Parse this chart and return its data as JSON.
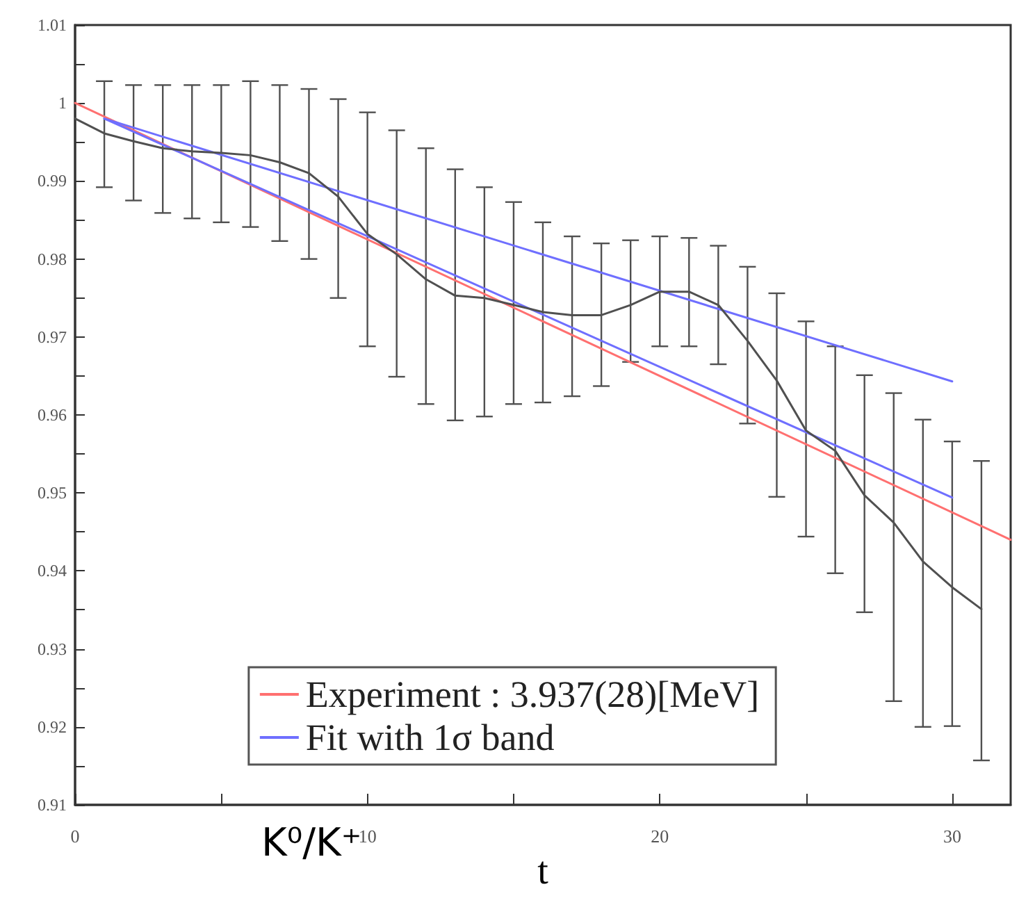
{
  "chart_data": {
    "type": "line",
    "xlabel": "t",
    "annotations": [
      "K⁰/K⁺"
    ],
    "xlim": [
      0,
      32
    ],
    "xticks": [
      0,
      {
        "value": 5,
        "label": null
      },
      10,
      {
        "value": 15,
        "label": null
      },
      20,
      {
        "value": 25,
        "label": null
      },
      30
    ],
    "ylim": [
      0.91,
      1.01
    ],
    "yticks": [
      0.91,
      {
        "value": 0.915,
        "label": null
      },
      0.92,
      {
        "value": 0.925,
        "label": null
      },
      0.93,
      {
        "value": 0.935,
        "label": null
      },
      0.94,
      {
        "value": 0.945,
        "label": null
      },
      0.95,
      {
        "value": 0.955,
        "label": null
      },
      0.96,
      {
        "value": 0.965,
        "label": null
      },
      0.97,
      {
        "value": 0.975,
        "label": null
      },
      0.98,
      {
        "value": 0.985,
        "label": null
      },
      0.99,
      {
        "value": 0.995,
        "label": null
      },
      1,
      {
        "value": 1.005,
        "label": null
      },
      1.01
    ],
    "legend": "bottom",
    "marker": "none",
    "line_style": "solid",
    "series": [
      {
        "color": "#ff7070",
        "name": "Experiment : 3.937(28)[MeV]",
        "x": [
          0,
          32
        ],
        "values": [
          1,
          0.944
        ]
      },
      {
        "color": "#6f6fff",
        "name": "Fit with 1σ band",
        "x": [
          1,
          30
        ],
        "values": [
          0.998,
          0.9643
        ]
      },
      {
        "color": "#6f6fff",
        "x": [
          1,
          30
        ],
        "values": [
          0.998,
          0.9494
        ]
      },
      {
        "color": "#505050",
        "x": [
          0,
          1,
          2,
          3,
          4,
          5,
          6,
          7,
          8,
          9,
          10,
          11,
          12,
          13,
          14,
          15,
          16,
          17,
          18,
          19,
          20,
          21,
          22,
          23,
          24,
          25,
          26,
          27,
          28,
          29,
          30,
          31
        ],
        "values": [
          0.998,
          0.9961,
          0.9951,
          0.9942,
          0.9938,
          0.9936,
          0.9933,
          0.9924,
          0.991,
          0.988,
          0.9832,
          0.9806,
          0.9774,
          0.9753,
          0.975,
          0.9741,
          0.9732,
          0.9728,
          0.9728,
          0.9741,
          0.9758,
          0.9758,
          0.9741,
          0.9695,
          0.9644,
          0.958,
          0.9554,
          0.9497,
          0.9462,
          0.9412,
          0.9379,
          0.9351
        ],
        "errors": [
          null,
          [
            0.9892,
            1.0028
          ],
          [
            0.9875,
            1.0023
          ],
          [
            0.9859,
            1.0023
          ],
          [
            0.9852,
            1.0023
          ],
          [
            0.9847,
            1.0023
          ],
          [
            0.9841,
            1.0028
          ],
          [
            0.9823,
            1.0023
          ],
          [
            0.98,
            1.0018
          ],
          [
            0.975,
            1.0005
          ],
          [
            0.9688,
            0.9988
          ],
          [
            0.9649,
            0.9965
          ],
          [
            0.9614,
            0.9942
          ],
          [
            0.9593,
            0.9915
          ],
          [
            0.9598,
            0.9892
          ],
          [
            0.9614,
            0.9873
          ],
          [
            0.9616,
            0.9847
          ],
          [
            0.9624,
            0.9829
          ],
          [
            0.9637,
            0.982
          ],
          [
            0.9668,
            0.9824
          ],
          [
            0.9688,
            0.9829
          ],
          [
            0.9688,
            0.9827
          ],
          [
            0.9665,
            0.9817
          ],
          [
            0.9589,
            0.979
          ],
          [
            0.9495,
            0.9756
          ],
          [
            0.9444,
            0.972
          ],
          [
            0.9397,
            0.9688
          ],
          [
            0.9347,
            0.9651
          ],
          [
            0.9233,
            0.9628
          ],
          [
            0.92,
            0.9594
          ],
          [
            0.9201,
            0.9566
          ],
          [
            0.9157,
            0.9541
          ]
        ]
      }
    ]
  }
}
